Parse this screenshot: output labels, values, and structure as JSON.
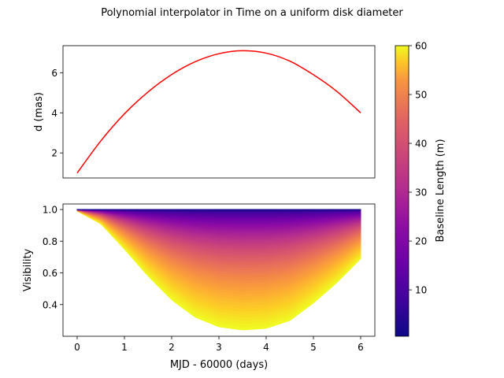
{
  "chart_data": [
    {
      "type": "line",
      "title": "Polynomial interpolator in Time on a uniform disk diameter",
      "xlabel": "",
      "ylabel": "d (mas)",
      "xlim": [
        -0.3,
        6.3
      ],
      "ylim": [
        0.75,
        7.35
      ],
      "yticks": [
        2,
        4,
        6
      ],
      "color": "#ff0000",
      "x": [
        0,
        0.5,
        1,
        1.5,
        2,
        2.5,
        3,
        3.5,
        4,
        4.5,
        5,
        5.5,
        6
      ],
      "y": [
        1.0,
        2.6,
        3.95,
        5.04,
        5.91,
        6.55,
        6.95,
        7.1,
        6.98,
        6.58,
        5.9,
        5.06,
        4.0
      ]
    },
    {
      "type": "area",
      "xlabel": "MJD - 60000 (days)",
      "ylabel": "Visibility",
      "xlim": [
        -0.3,
        6.3
      ],
      "ylim": [
        0.2,
        1.035
      ],
      "xticks": [
        0,
        1,
        2,
        3,
        4,
        5,
        6
      ],
      "yticks": [
        0.4,
        0.6,
        0.8,
        1.0
      ],
      "colorbar": {
        "label": "Baseline Length (m)",
        "colormap": "plasma",
        "range": [
          0.5,
          60
        ],
        "ticks": [
          10,
          20,
          30,
          40,
          50,
          60
        ]
      },
      "x": [
        0,
        0.5,
        1,
        1.5,
        2,
        2.5,
        3,
        3.5,
        4,
        4.5,
        5,
        5.5,
        6
      ],
      "visibility_at_max_baseline": [
        0.99,
        0.91,
        0.75,
        0.58,
        0.43,
        0.32,
        0.26,
        0.24,
        0.25,
        0.3,
        0.41,
        0.54,
        0.69
      ]
    }
  ]
}
